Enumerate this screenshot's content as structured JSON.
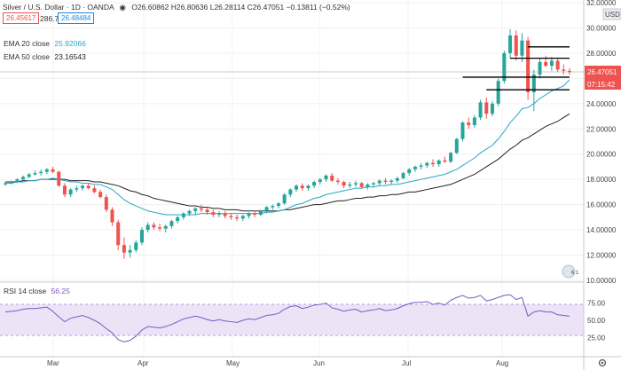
{
  "header": {
    "symbol": "Silver / U.S. Dollar · 1D · OANDA",
    "ohlc": "O26.60862 H26.80636 L26.28114 C26.47051 −0.13811 (−0.52%)",
    "bid": "26.45617",
    "spread": "286.7",
    "ask": "26.48484"
  },
  "indicators": {
    "ema20": {
      "label": "EMA 20 close",
      "value": "25.92066",
      "color": "#26a7c7"
    },
    "ema50": {
      "label": "EMA 50 close",
      "value": "23.16543",
      "color": "#222222"
    },
    "rsi": {
      "label": "RSI 14 close",
      "value": "56.25"
    }
  },
  "price_axis": {
    "currency": "USD",
    "last_price": "26.47051",
    "countdown": "07:15:42",
    "ticks": [
      "32.00000",
      "30.00000",
      "28.00000",
      "26.00000",
      "24.00000",
      "22.00000",
      "20.00000",
      "18.00000",
      "16.00000",
      "14.00000",
      "12.00000",
      "10.00000"
    ]
  },
  "rsi_axis": {
    "ticks": [
      "75.00",
      "50.00",
      "25.00"
    ]
  },
  "time_axis": {
    "ticks": [
      "Mar",
      "Apr",
      "May",
      "Jun",
      "Jul",
      "Aug"
    ]
  },
  "colors": {
    "up": "#26a69a",
    "down": "#ef5350",
    "rsi_band": "#ede3f7",
    "rsi_line": "#7e57c2"
  },
  "chart_data": {
    "type": "candlestick",
    "ylim": [
      10,
      32
    ],
    "rsi_ylim": [
      0,
      100
    ],
    "candles": [
      [
        17.6,
        17.8,
        17.5,
        17.7
      ],
      [
        17.7,
        17.9,
        17.6,
        17.8
      ],
      [
        17.8,
        18.1,
        17.7,
        18.0
      ],
      [
        18.0,
        18.3,
        17.9,
        18.2
      ],
      [
        18.2,
        18.5,
        18.1,
        18.4
      ],
      [
        18.4,
        18.7,
        18.3,
        18.5
      ],
      [
        18.5,
        18.8,
        18.3,
        18.6
      ],
      [
        18.6,
        18.9,
        18.4,
        18.8
      ],
      [
        18.8,
        19.0,
        18.5,
        18.6
      ],
      [
        18.6,
        18.7,
        17.4,
        17.5
      ],
      [
        17.5,
        17.7,
        16.6,
        16.8
      ],
      [
        16.8,
        17.3,
        16.6,
        17.2
      ],
      [
        17.2,
        17.5,
        17.0,
        17.3
      ],
      [
        17.3,
        17.6,
        17.1,
        17.5
      ],
      [
        17.5,
        17.7,
        17.2,
        17.3
      ],
      [
        17.3,
        17.5,
        16.9,
        17.0
      ],
      [
        17.0,
        17.2,
        16.5,
        16.6
      ],
      [
        16.6,
        16.8,
        15.4,
        15.6
      ],
      [
        15.6,
        15.8,
        14.3,
        14.6
      ],
      [
        14.6,
        14.8,
        12.4,
        12.8
      ],
      [
        12.8,
        13.4,
        11.7,
        12.2
      ],
      [
        12.2,
        12.8,
        11.8,
        12.4
      ],
      [
        12.4,
        13.2,
        12.2,
        13.0
      ],
      [
        13.0,
        14.2,
        12.8,
        14.0
      ],
      [
        14.0,
        14.6,
        13.8,
        14.4
      ],
      [
        14.4,
        14.6,
        14.0,
        14.2
      ],
      [
        14.2,
        14.5,
        13.9,
        14.1
      ],
      [
        14.1,
        14.4,
        13.8,
        14.3
      ],
      [
        14.3,
        14.8,
        14.1,
        14.7
      ],
      [
        14.7,
        15.1,
        14.5,
        15.0
      ],
      [
        15.0,
        15.4,
        14.8,
        15.3
      ],
      [
        15.3,
        15.6,
        15.1,
        15.5
      ],
      [
        15.5,
        15.8,
        15.2,
        15.7
      ],
      [
        15.7,
        16.0,
        15.4,
        15.6
      ],
      [
        15.6,
        15.8,
        15.2,
        15.4
      ],
      [
        15.4,
        15.6,
        15.0,
        15.2
      ],
      [
        15.2,
        15.5,
        15.0,
        15.3
      ],
      [
        15.3,
        15.5,
        14.9,
        15.1
      ],
      [
        15.1,
        15.3,
        14.8,
        15.0
      ],
      [
        15.0,
        15.2,
        14.7,
        14.9
      ],
      [
        14.9,
        15.2,
        14.7,
        15.1
      ],
      [
        15.1,
        15.4,
        14.9,
        15.3
      ],
      [
        15.3,
        15.5,
        15.0,
        15.2
      ],
      [
        15.2,
        15.6,
        15.1,
        15.5
      ],
      [
        15.5,
        15.9,
        15.3,
        15.8
      ],
      [
        15.8,
        16.0,
        15.6,
        15.9
      ],
      [
        15.9,
        16.2,
        15.7,
        16.1
      ],
      [
        16.1,
        16.9,
        16.0,
        16.8
      ],
      [
        16.8,
        17.3,
        16.6,
        17.2
      ],
      [
        17.2,
        17.6,
        17.0,
        17.5
      ],
      [
        17.5,
        17.7,
        17.1,
        17.3
      ],
      [
        17.3,
        17.6,
        17.1,
        17.5
      ],
      [
        17.5,
        17.9,
        17.3,
        17.8
      ],
      [
        17.8,
        18.1,
        17.6,
        18.0
      ],
      [
        18.0,
        18.4,
        17.8,
        18.3
      ],
      [
        18.3,
        18.5,
        17.8,
        17.9
      ],
      [
        17.9,
        18.1,
        17.6,
        17.8
      ],
      [
        17.8,
        17.9,
        17.3,
        17.5
      ],
      [
        17.5,
        17.8,
        17.3,
        17.6
      ],
      [
        17.6,
        17.9,
        17.4,
        17.7
      ],
      [
        17.7,
        17.8,
        17.3,
        17.4
      ],
      [
        17.4,
        17.7,
        17.2,
        17.6
      ],
      [
        17.6,
        17.8,
        17.4,
        17.7
      ],
      [
        17.7,
        18.0,
        17.5,
        17.9
      ],
      [
        17.9,
        18.1,
        17.6,
        17.8
      ],
      [
        17.8,
        18.0,
        17.6,
        17.9
      ],
      [
        17.9,
        18.2,
        17.7,
        18.1
      ],
      [
        18.1,
        18.6,
        18.0,
        18.5
      ],
      [
        18.5,
        18.9,
        18.3,
        18.8
      ],
      [
        18.8,
        19.1,
        18.6,
        19.0
      ],
      [
        19.0,
        19.3,
        18.8,
        19.1
      ],
      [
        19.1,
        19.4,
        18.9,
        19.3
      ],
      [
        19.3,
        19.6,
        19.0,
        19.2
      ],
      [
        19.2,
        19.6,
        19.0,
        19.5
      ],
      [
        19.5,
        19.8,
        19.3,
        19.4
      ],
      [
        19.4,
        20.2,
        19.3,
        20.1
      ],
      [
        20.1,
        21.3,
        20.0,
        21.2
      ],
      [
        21.2,
        22.6,
        21.0,
        22.5
      ],
      [
        22.5,
        22.9,
        22.0,
        22.3
      ],
      [
        22.3,
        23.1,
        22.1,
        22.9
      ],
      [
        22.9,
        24.3,
        22.7,
        24.1
      ],
      [
        24.1,
        24.5,
        22.8,
        23.2
      ],
      [
        23.2,
        24.2,
        23.0,
        24.0
      ],
      [
        24.0,
        26.0,
        23.8,
        25.8
      ],
      [
        25.8,
        28.2,
        25.6,
        28.0
      ],
      [
        28.0,
        29.9,
        27.6,
        29.4
      ],
      [
        29.4,
        29.8,
        27.4,
        27.8
      ],
      [
        27.8,
        29.6,
        27.3,
        29.0
      ],
      [
        29.0,
        29.3,
        24.3,
        24.9
      ],
      [
        24.9,
        26.7,
        23.4,
        26.3
      ],
      [
        26.3,
        27.6,
        26.0,
        27.3
      ],
      [
        27.3,
        27.8,
        26.9,
        27.0
      ],
      [
        27.0,
        27.7,
        26.6,
        27.4
      ],
      [
        27.4,
        27.6,
        26.5,
        26.7
      ],
      [
        26.7,
        27.1,
        26.3,
        26.6
      ],
      [
        26.6,
        26.8,
        26.3,
        26.5
      ]
    ],
    "ema20": [
      17.7,
      17.7,
      17.8,
      17.8,
      17.9,
      17.9,
      18.0,
      18.0,
      18.1,
      18.0,
      17.9,
      17.8,
      17.8,
      17.7,
      17.7,
      17.6,
      17.6,
      17.4,
      17.2,
      16.8,
      16.4,
      16.1,
      15.9,
      15.7,
      15.5,
      15.4,
      15.3,
      15.2,
      15.2,
      15.2,
      15.2,
      15.2,
      15.2,
      15.3,
      15.3,
      15.3,
      15.3,
      15.3,
      15.3,
      15.3,
      15.3,
      15.3,
      15.3,
      15.3,
      15.4,
      15.4,
      15.5,
      15.6,
      15.8,
      16.0,
      16.1,
      16.3,
      16.5,
      16.6,
      16.8,
      16.9,
      17.0,
      17.1,
      17.2,
      17.3,
      17.3,
      17.4,
      17.4,
      17.5,
      17.5,
      17.6,
      17.6,
      17.7,
      17.8,
      17.9,
      18.0,
      18.1,
      18.2,
      18.3,
      18.4,
      18.6,
      18.8,
      19.1,
      19.4,
      19.7,
      20.1,
      20.4,
      20.7,
      21.2,
      21.8,
      22.5,
      23.0,
      23.6,
      23.7,
      24.0,
      24.4,
      24.7,
      25.0,
      25.2,
      25.4,
      25.9
    ],
    "ema50": [
      17.8,
      17.8,
      17.8,
      17.9,
      17.9,
      17.9,
      18.0,
      18.0,
      18.0,
      18.0,
      18.0,
      17.9,
      17.9,
      17.9,
      17.9,
      17.8,
      17.8,
      17.7,
      17.6,
      17.5,
      17.3,
      17.1,
      17.0,
      16.8,
      16.7,
      16.5,
      16.4,
      16.3,
      16.2,
      16.1,
      16.0,
      15.9,
      15.9,
      15.8,
      15.8,
      15.7,
      15.7,
      15.6,
      15.6,
      15.6,
      15.5,
      15.5,
      15.5,
      15.5,
      15.5,
      15.5,
      15.5,
      15.6,
      15.6,
      15.7,
      15.8,
      15.9,
      16.0,
      16.0,
      16.1,
      16.2,
      16.3,
      16.3,
      16.4,
      16.5,
      16.5,
      16.6,
      16.6,
      16.7,
      16.7,
      16.8,
      16.8,
      16.9,
      17.0,
      17.0,
      17.1,
      17.2,
      17.3,
      17.4,
      17.5,
      17.6,
      17.8,
      18.0,
      18.2,
      18.4,
      18.7,
      19.0,
      19.3,
      19.6,
      20.0,
      20.4,
      20.7,
      21.1,
      21.3,
      21.6,
      21.9,
      22.2,
      22.4,
      22.6,
      22.9,
      23.2
    ],
    "rsi": [
      62,
      63,
      64,
      66,
      67,
      67,
      68,
      69,
      63,
      55,
      48,
      53,
      55,
      57,
      54,
      50,
      45,
      38,
      32,
      22,
      19,
      21,
      27,
      36,
      41,
      40,
      39,
      41,
      44,
      48,
      52,
      54,
      56,
      54,
      51,
      49,
      51,
      49,
      48,
      47,
      50,
      52,
      51,
      54,
      57,
      58,
      60,
      66,
      70,
      71,
      67,
      69,
      72,
      73,
      75,
      68,
      66,
      63,
      65,
      66,
      62,
      64,
      65,
      67,
      64,
      65,
      67,
      71,
      74,
      76,
      76,
      77,
      73,
      75,
      72,
      79,
      83,
      86,
      82,
      83,
      86,
      78,
      80,
      83,
      86,
      87,
      80,
      83,
      56,
      62,
      64,
      62,
      62,
      58,
      57,
      56
    ],
    "resistance_lines": [
      {
        "y": 28.5,
        "from": 88,
        "to": 95
      },
      {
        "y": 27.6,
        "from": 85,
        "to": 95
      },
      {
        "y": 26.1,
        "from": 77,
        "to": 95
      },
      {
        "y": 25.1,
        "from": 81,
        "to": 95
      }
    ]
  }
}
